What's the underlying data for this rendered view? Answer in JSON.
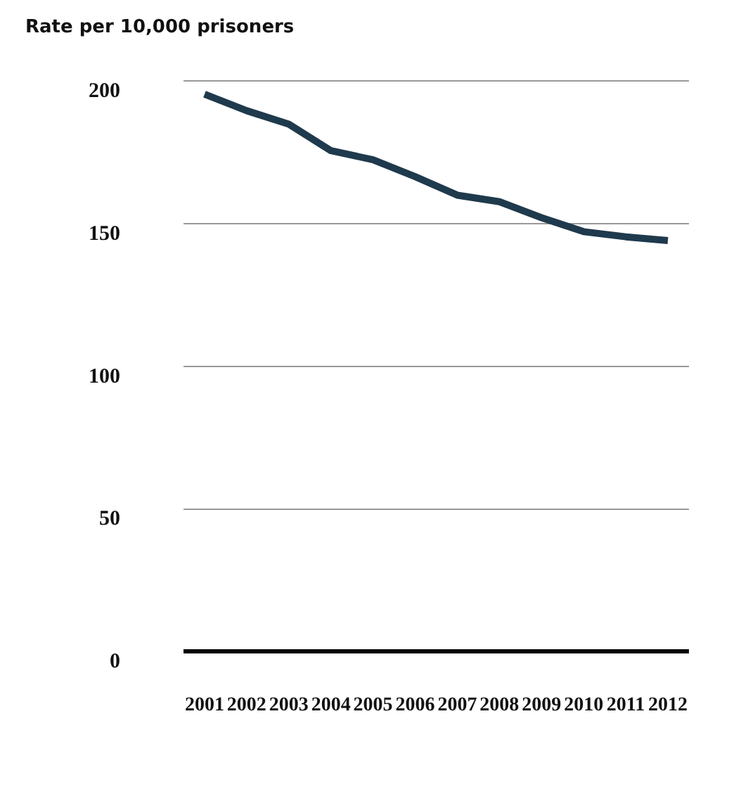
{
  "chart_data": {
    "type": "line",
    "ylabel": "Rate per 10,000 prisoners",
    "categories": [
      "2001",
      "2002",
      "2003",
      "2004",
      "2005",
      "2006",
      "2007",
      "2008",
      "2009",
      "2010",
      "2011",
      "2012"
    ],
    "series": [
      {
        "color": "#1f3a4d",
        "values": [
          195.4,
          189.6,
          184.9,
          175.6,
          172.4,
          166.5,
          160,
          157.7,
          152.1,
          147.2,
          145.4,
          144.1
        ]
      }
    ],
    "ylim": [
      0,
      200
    ],
    "yticks": [
      0,
      50,
      100,
      150,
      200
    ],
    "grid": "y",
    "legend": false,
    "marker": "none",
    "line_style": "solid"
  }
}
